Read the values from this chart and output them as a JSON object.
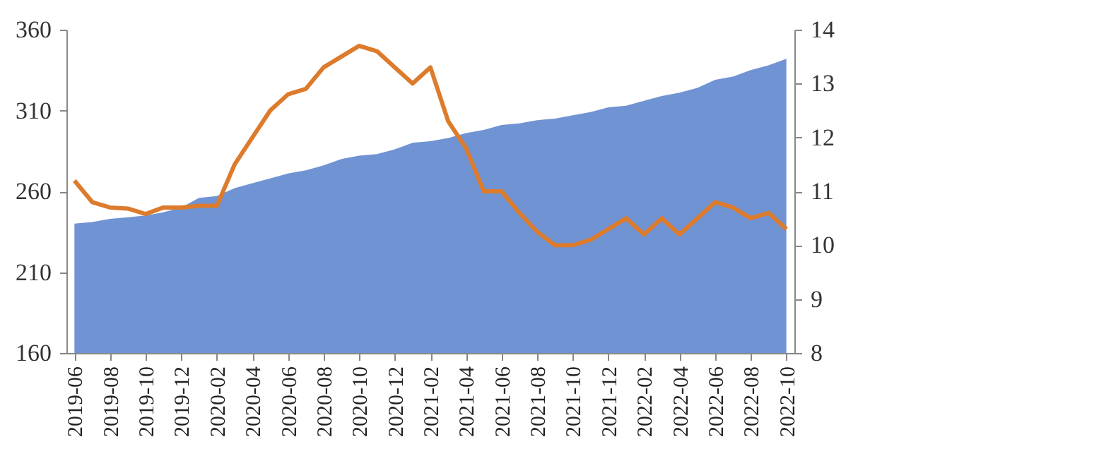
{
  "chart_data": {
    "type": "area",
    "categories": [
      "2019-06",
      null,
      "2019-08",
      null,
      "2019-10",
      null,
      "2019-12",
      null,
      "2020-02",
      null,
      "2020-04",
      null,
      "2020-06",
      null,
      "2020-08",
      null,
      "2020-10",
      null,
      "2020-12",
      null,
      "2021-02",
      null,
      "2021-04",
      null,
      "2021-06",
      null,
      "2021-08",
      null,
      "2021-10",
      null,
      "2021-12",
      null,
      "2022-02",
      null,
      "2022-04",
      null,
      "2022-06",
      null,
      "2022-08",
      null,
      "2022-10"
    ],
    "series": [
      {
        "color": "#7093d3",
        "values": [
          240,
          241,
          243,
          244,
          245,
          247,
          250,
          256,
          257,
          262,
          265,
          268,
          271,
          273,
          276,
          280,
          282,
          283,
          286,
          290,
          291,
          293,
          296,
          298,
          301,
          302,
          304,
          305,
          307,
          309,
          312,
          313,
          316,
          319,
          321,
          324,
          329,
          331,
          335,
          338,
          342
        ]
      },
      {
        "type": "line",
        "axis": "y2",
        "color": "#dd7b2c",
        "values": [
          11.2,
          10.8,
          10.7,
          10.68,
          10.58,
          10.7,
          10.7,
          10.73,
          10.73,
          11.5,
          12.0,
          12.5,
          12.8,
          12.9,
          13.3,
          13.5,
          13.7,
          13.6,
          13.3,
          13.0,
          13.3,
          12.3,
          11.8,
          11.0,
          11.0,
          10.6,
          10.25,
          10.0,
          10.0,
          10.1,
          10.3,
          10.5,
          10.2,
          10.5,
          10.2,
          10.5,
          10.8,
          10.7,
          10.5,
          10.6,
          10.3
        ]
      }
    ],
    "ylim": [
      160,
      360
    ],
    "yticks": [
      160,
      210,
      260,
      310,
      360
    ],
    "y2lim": [
      8,
      14
    ],
    "y2ticks": [
      8,
      9,
      10,
      11,
      12,
      13,
      14
    ],
    "grid": false,
    "legend": false
  }
}
